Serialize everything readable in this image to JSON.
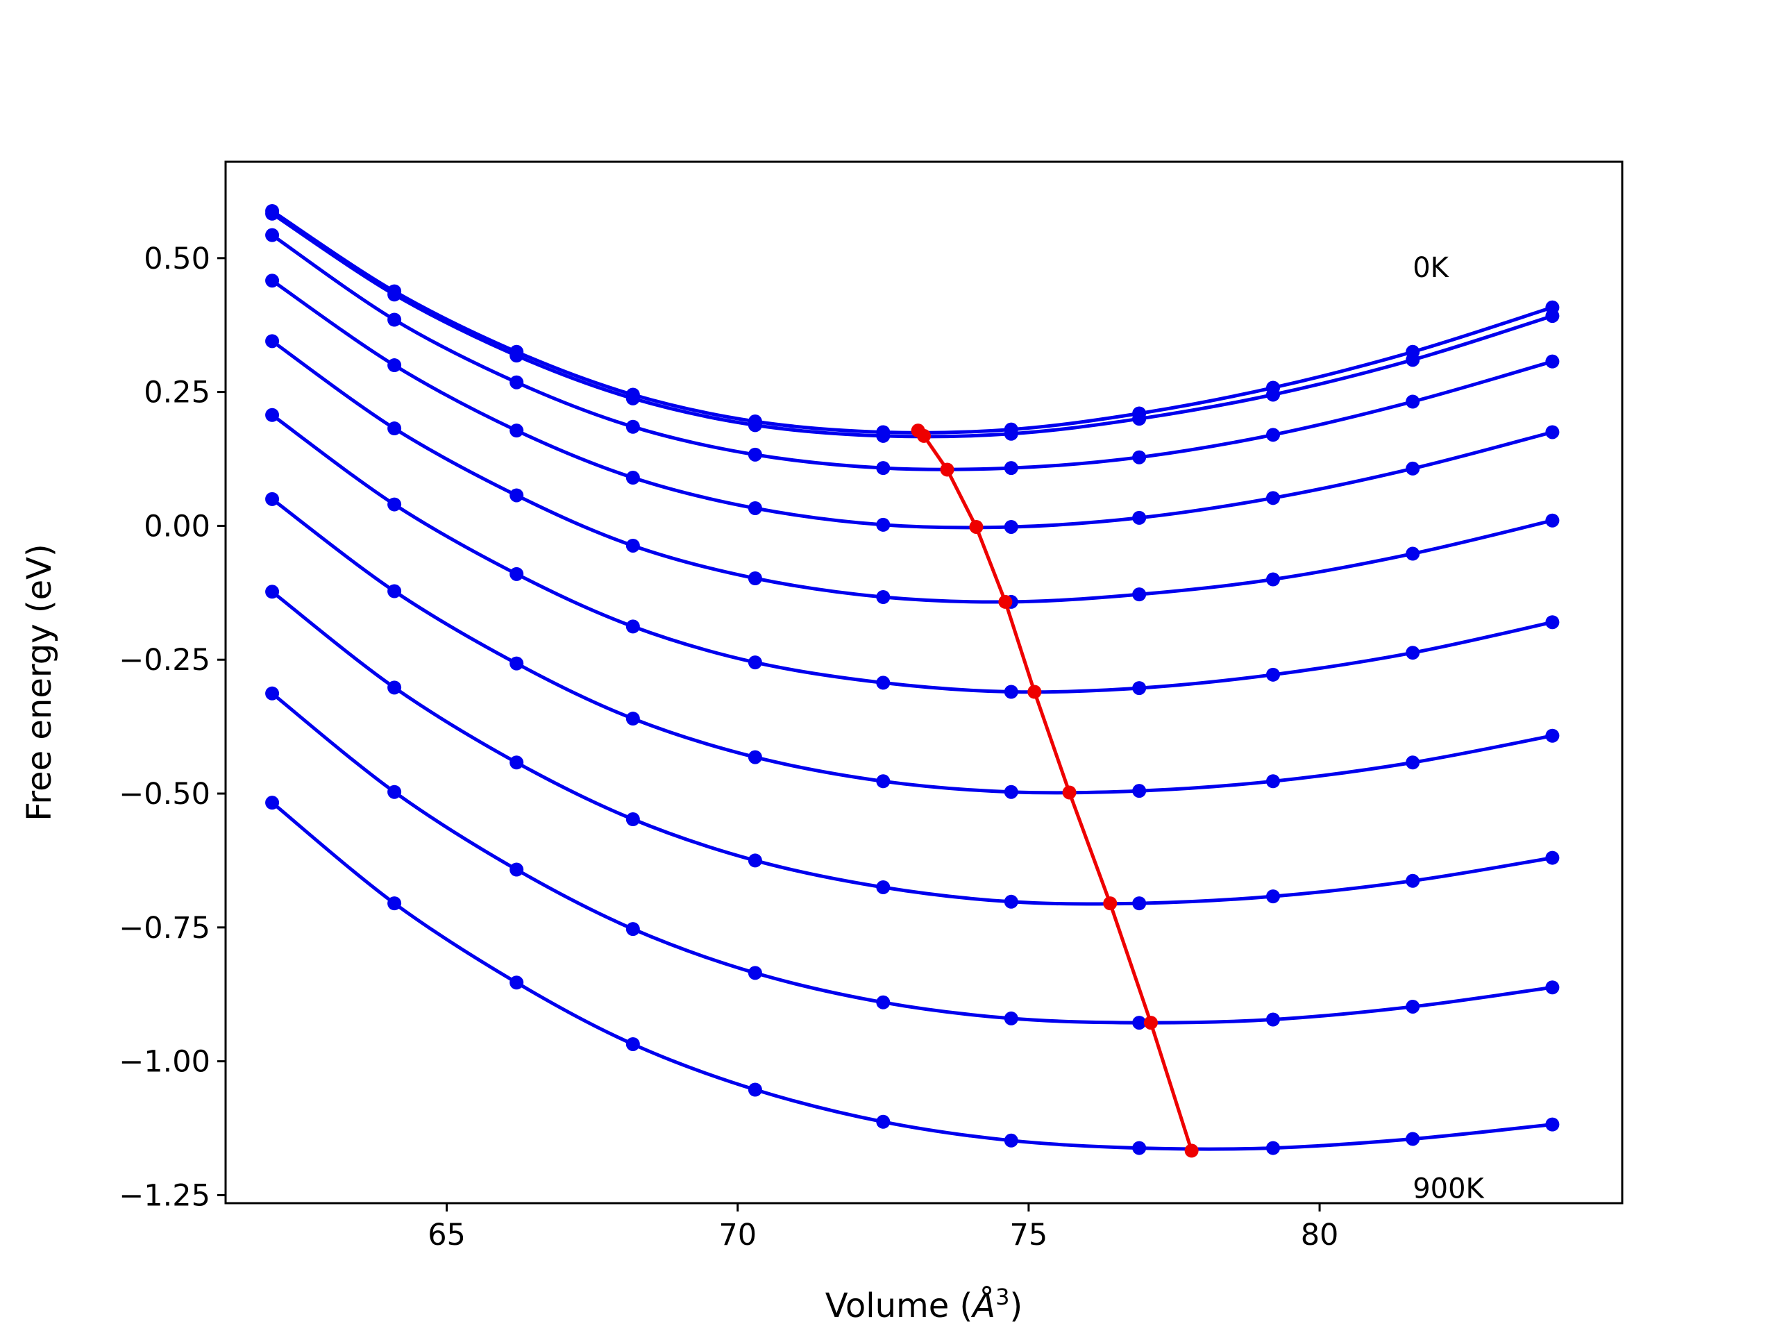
{
  "chart_data": {
    "type": "line",
    "xlabel": "Volume (",
    "xlabel_symbol": "Å",
    "xlabel_exp": "3",
    "xlabel_close": ")",
    "ylabel": "Free energy (eV)",
    "xlim": [
      61.2,
      85.2
    ],
    "ylim": [
      -1.265,
      0.68
    ],
    "x_ticks": [
      65,
      70,
      75,
      80
    ],
    "y_ticks": [
      0.5,
      0.25,
      0.0,
      -0.25,
      -0.5,
      -0.75,
      -1.0,
      -1.25
    ],
    "x_tick_labels": [
      "65",
      "70",
      "75",
      "80"
    ],
    "y_tick_labels": [
      "0.50",
      "0.25",
      "0.00",
      "−0.25",
      "−0.50",
      "−0.75",
      "−1.00",
      "−1.25"
    ],
    "grid": false,
    "annotations": [
      {
        "text": "0K",
        "x": 81.6,
        "y": 0.465
      },
      {
        "text": "900K",
        "x": 81.6,
        "y": -1.255
      }
    ],
    "x": [
      62.0,
      64.1,
      66.2,
      68.2,
      70.3,
      72.5,
      74.7,
      76.9,
      79.2,
      81.6,
      84.0
    ],
    "colors": {
      "curve": "#0000ee",
      "minimum": "#ee0000"
    },
    "series": [
      {
        "values": [
          0.588,
          0.438,
          0.325,
          0.245,
          0.195,
          0.175,
          0.18,
          0.21,
          0.258,
          0.325,
          0.408
        ],
        "min": [
          73.1,
          0.178
        ]
      },
      {
        "values": [
          0.583,
          0.432,
          0.318,
          0.238,
          0.188,
          0.168,
          0.172,
          0.2,
          0.245,
          0.31,
          0.392
        ],
        "min": [
          73.2,
          0.168
        ]
      },
      {
        "values": [
          0.543,
          0.385,
          0.268,
          0.185,
          0.133,
          0.108,
          0.108,
          0.128,
          0.17,
          0.232,
          0.307
        ],
        "min": [
          73.6,
          0.105
        ]
      },
      {
        "values": [
          0.458,
          0.3,
          0.178,
          0.09,
          0.033,
          0.002,
          -0.002,
          0.015,
          0.052,
          0.107,
          0.175
        ],
        "min": [
          74.1,
          -0.002
        ]
      },
      {
        "values": [
          0.345,
          0.182,
          0.057,
          -0.037,
          -0.098,
          -0.133,
          -0.142,
          -0.128,
          -0.1,
          -0.052,
          0.01
        ],
        "min": [
          74.6,
          -0.142
        ]
      },
      {
        "values": [
          0.207,
          0.04,
          -0.09,
          -0.188,
          -0.255,
          -0.293,
          -0.31,
          -0.303,
          -0.278,
          -0.237,
          -0.18
        ],
        "min": [
          75.1,
          -0.31
        ]
      },
      {
        "values": [
          0.05,
          -0.122,
          -0.257,
          -0.36,
          -0.432,
          -0.477,
          -0.497,
          -0.495,
          -0.477,
          -0.442,
          -0.392
        ],
        "min": [
          75.7,
          -0.498
        ]
      },
      {
        "values": [
          -0.123,
          -0.302,
          -0.442,
          -0.548,
          -0.625,
          -0.675,
          -0.702,
          -0.705,
          -0.692,
          -0.663,
          -0.62
        ],
        "min": [
          76.4,
          -0.705
        ]
      },
      {
        "values": [
          -0.313,
          -0.497,
          -0.642,
          -0.753,
          -0.835,
          -0.89,
          -0.92,
          -0.928,
          -0.922,
          -0.898,
          -0.862
        ],
        "min": [
          77.1,
          -0.928
        ]
      },
      {
        "values": [
          -0.517,
          -0.705,
          -0.853,
          -0.968,
          -1.053,
          -1.113,
          -1.148,
          -1.162,
          -1.162,
          -1.145,
          -1.118
        ],
        "min": [
          77.8,
          -1.167
        ]
      }
    ]
  }
}
